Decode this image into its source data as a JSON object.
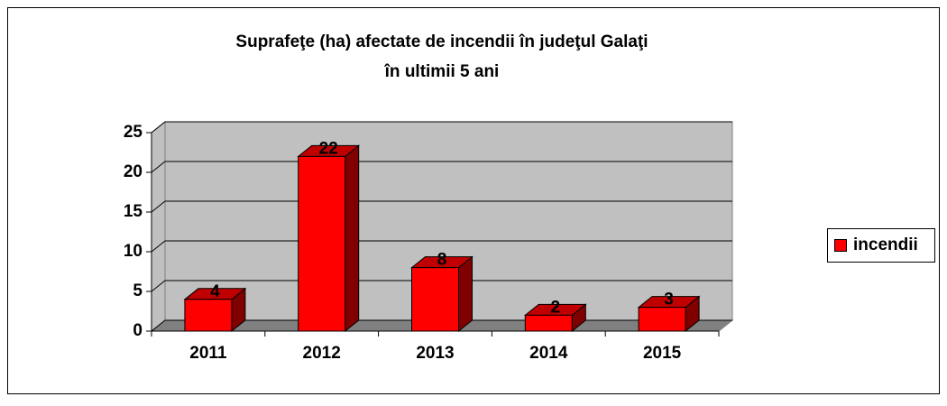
{
  "chart_data": {
    "type": "bar3d",
    "title": [
      "Suprafeţe (ha) afectate de incendii în judeţul Galaţi",
      "în ultimii 5 ani"
    ],
    "categories": [
      "2011",
      "2012",
      "2013",
      "2014",
      "2015"
    ],
    "series": [
      {
        "name": "incendii",
        "color": "#ff0000",
        "values": [
          4,
          22,
          8,
          2,
          3
        ]
      }
    ],
    "ylim": [
      0,
      25
    ],
    "yticks": [
      0,
      5,
      10,
      15,
      20,
      25
    ],
    "grid": true,
    "legend": "right"
  }
}
